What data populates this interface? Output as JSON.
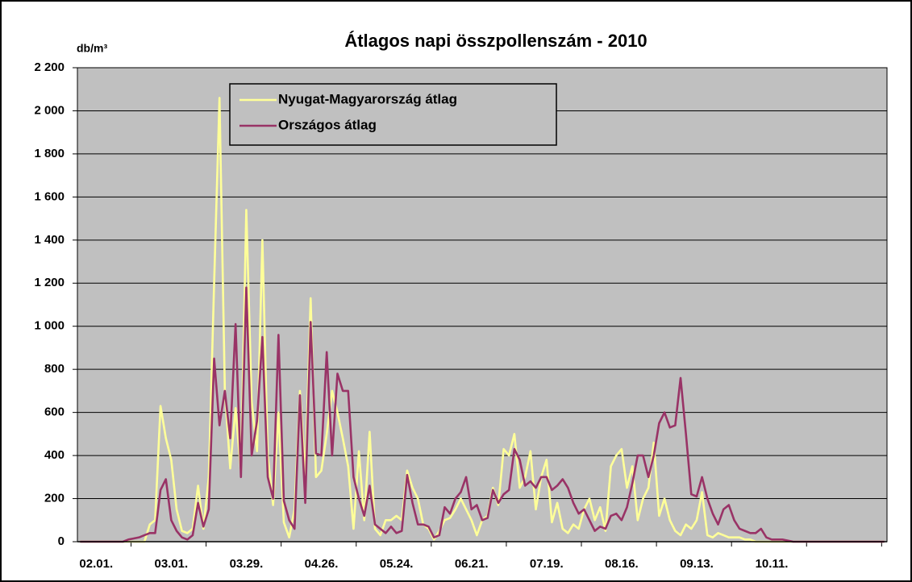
{
  "chart_data": {
    "type": "line",
    "title": "Átlagos napi összpollenszám - 2010",
    "y_label": "db/m³",
    "categories": [
      null,
      null,
      null,
      "02.01.",
      null,
      null,
      null,
      null,
      null,
      null,
      null,
      null,
      null,
      null,
      null,
      null,
      null,
      "03.01.",
      null,
      null,
      null,
      null,
      null,
      null,
      null,
      null,
      null,
      null,
      null,
      null,
      null,
      "03.29.",
      null,
      null,
      null,
      null,
      null,
      null,
      null,
      null,
      null,
      null,
      null,
      null,
      null,
      "04.26.",
      null,
      null,
      null,
      null,
      null,
      null,
      null,
      null,
      null,
      null,
      null,
      null,
      null,
      "05.24.",
      null,
      null,
      null,
      null,
      null,
      null,
      null,
      null,
      null,
      null,
      null,
      null,
      null,
      "06.21.",
      null,
      null,
      null,
      null,
      null,
      null,
      null,
      null,
      null,
      null,
      null,
      null,
      null,
      "07.19.",
      null,
      null,
      null,
      null,
      null,
      null,
      null,
      null,
      null,
      null,
      null,
      null,
      null,
      "08.16.",
      null,
      null,
      null,
      null,
      null,
      null,
      null,
      null,
      null,
      null,
      null,
      null,
      null,
      "09.13.",
      null,
      null,
      null,
      null,
      null,
      null,
      null,
      null,
      null,
      null,
      null,
      null,
      null,
      "10.11.",
      null,
      null,
      null,
      null,
      null,
      null,
      null,
      null,
      null,
      null,
      null,
      null,
      null,
      null,
      null,
      null,
      null,
      null,
      null,
      null,
      null
    ],
    "series": [
      {
        "name": "Nyugat-Magyarország átlag",
        "color": "#ffff99",
        "values": [
          0,
          0,
          0,
          0,
          0,
          0,
          0,
          0,
          0,
          0,
          0,
          0,
          0,
          80,
          100,
          630,
          480,
          380,
          150,
          50,
          40,
          60,
          260,
          60,
          300,
          1200,
          2060,
          700,
          340,
          620,
          320,
          1540,
          650,
          420,
          1400,
          400,
          170,
          600,
          90,
          20,
          150,
          700,
          300,
          1130,
          300,
          330,
          500,
          700,
          600,
          480,
          350,
          60,
          420,
          100,
          510,
          60,
          30,
          100,
          100,
          120,
          100,
          330,
          250,
          200,
          80,
          60,
          10,
          50,
          100,
          110,
          150,
          200,
          150,
          100,
          30,
          100,
          120,
          250,
          170,
          430,
          400,
          500,
          250,
          300,
          420,
          150,
          300,
          380,
          90,
          180,
          60,
          40,
          80,
          60,
          150,
          200,
          100,
          160,
          50,
          350,
          400,
          430,
          250,
          350,
          100,
          200,
          250,
          460,
          120,
          200,
          100,
          50,
          30,
          80,
          60,
          100,
          230,
          30,
          20,
          40,
          30,
          20,
          20,
          20,
          10,
          10,
          0,
          0,
          0,
          0,
          0,
          0,
          0,
          0,
          0,
          0,
          0,
          0,
          0,
          0,
          0,
          0,
          0,
          0,
          0,
          0,
          0,
          0,
          0,
          0,
          0
        ]
      },
      {
        "name": "Országos átlag",
        "color": "#993366",
        "values": [
          0,
          0,
          0,
          0,
          0,
          0,
          0,
          0,
          0,
          10,
          15,
          20,
          30,
          40,
          40,
          240,
          290,
          100,
          50,
          20,
          10,
          30,
          180,
          70,
          150,
          850,
          540,
          700,
          480,
          1010,
          300,
          1180,
          400,
          560,
          950,
          300,
          200,
          960,
          190,
          100,
          60,
          680,
          180,
          1020,
          410,
          400,
          880,
          400,
          780,
          700,
          700,
          300,
          200,
          120,
          260,
          80,
          60,
          40,
          70,
          40,
          50,
          310,
          180,
          80,
          80,
          70,
          20,
          30,
          160,
          130,
          200,
          230,
          300,
          150,
          170,
          100,
          110,
          240,
          180,
          220,
          240,
          430,
          380,
          260,
          280,
          250,
          300,
          300,
          240,
          260,
          290,
          250,
          180,
          130,
          150,
          100,
          50,
          70,
          60,
          120,
          130,
          100,
          160,
          270,
          400,
          400,
          300,
          400,
          550,
          600,
          530,
          540,
          760,
          500,
          220,
          210,
          300,
          200,
          130,
          80,
          150,
          170,
          100,
          60,
          50,
          40,
          40,
          60,
          20,
          10,
          10,
          10,
          5,
          0,
          0,
          0,
          0,
          0,
          0,
          0,
          0,
          0,
          0,
          0,
          0,
          0,
          0,
          0,
          0,
          0,
          0
        ]
      }
    ],
    "ylim": [
      0,
      2200
    ],
    "yticks": [
      0,
      200,
      400,
      600,
      800,
      {
        "value": 1000,
        "label": "1 000"
      },
      {
        "value": 1200,
        "label": "1 200"
      },
      {
        "value": 1400,
        "label": "1 400"
      },
      {
        "value": 1600,
        "label": "1 600"
      },
      {
        "value": 1800,
        "label": "1 800"
      },
      {
        "value": 2000,
        "label": "2 000"
      },
      {
        "value": 2200,
        "label": "2 200"
      }
    ],
    "grid": true,
    "legend": "top-left"
  }
}
